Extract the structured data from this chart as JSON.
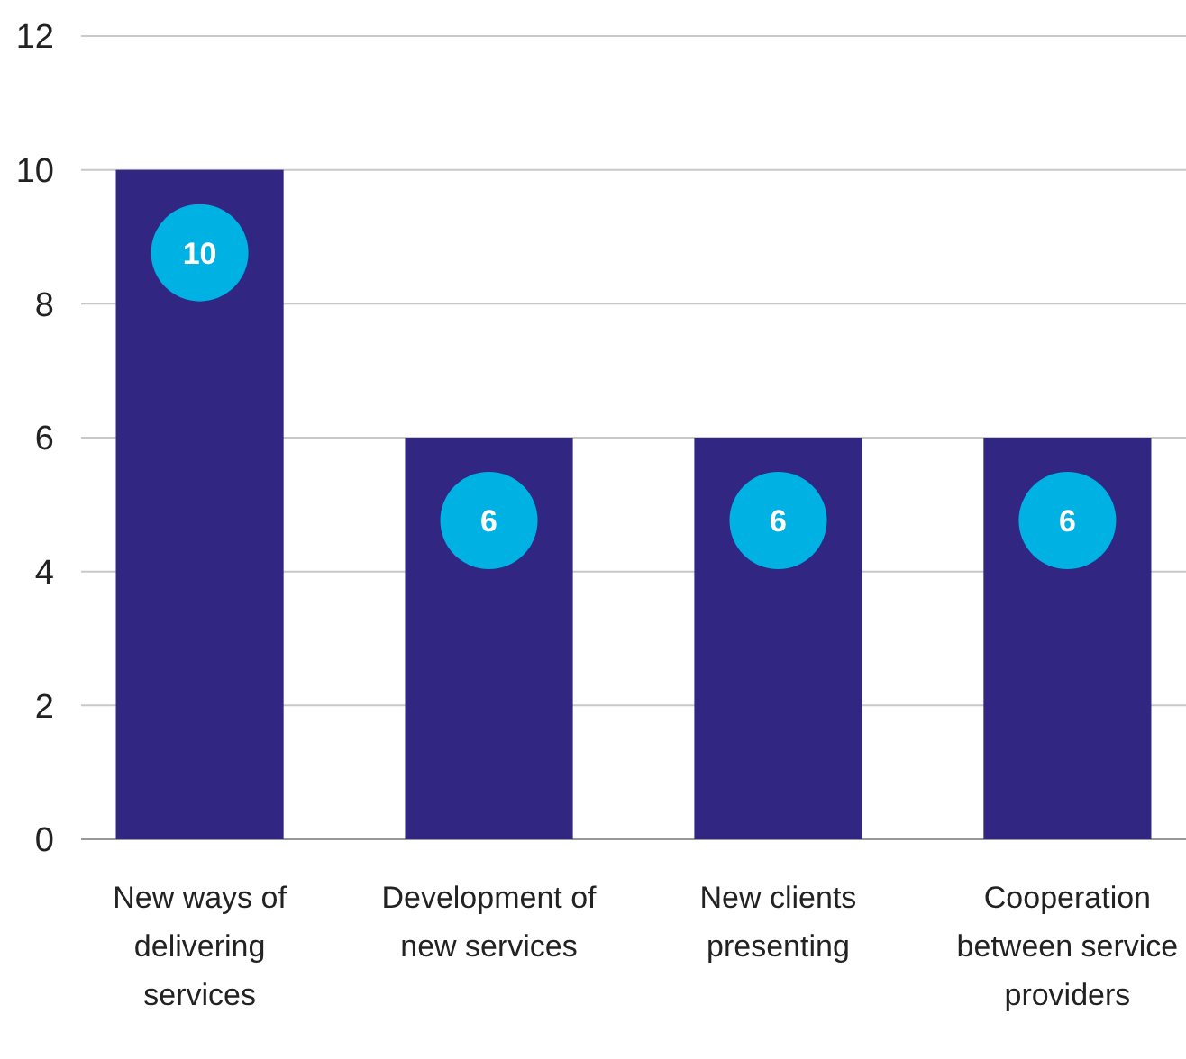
{
  "chart_data": {
    "type": "bar",
    "categories": [
      "New ways of delivering services",
      "Development of new services",
      "New clients presenting",
      "Cooperation between service providers"
    ],
    "values": [
      10,
      6,
      6,
      6
    ],
    "color": "#312783",
    "ylim": [
      0,
      12
    ],
    "yticks": [
      0,
      2,
      4,
      6,
      8,
      10,
      12
    ],
    "grid": "y",
    "data_labels": true
  }
}
